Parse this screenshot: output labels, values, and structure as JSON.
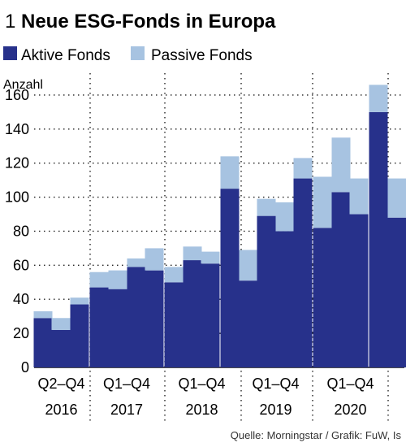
{
  "header": {
    "number": "1",
    "title": "Neue ESG-Fonds in Europa"
  },
  "source": "Quelle: Morningstar / Grafik: FuW, Is",
  "colors": {
    "active": "#27318b",
    "passive": "#a7c3e1"
  },
  "chart_data": {
    "type": "bar",
    "stacked": true,
    "title": "Neue ESG-Fonds in Europa",
    "ylabel": "Anzahl",
    "ylim": [
      0,
      170
    ],
    "yticks": [
      0,
      20,
      40,
      60,
      80,
      100,
      120,
      140,
      160
    ],
    "grid": true,
    "legend_position": "top",
    "series": [
      {
        "name": "Aktive Fonds",
        "values": [
          29,
          22,
          37,
          47,
          46,
          59,
          57,
          50,
          63,
          61,
          105,
          51,
          89,
          80,
          111,
          82,
          103,
          90,
          150,
          88
        ]
      },
      {
        "name": "Passive Fonds",
        "values": [
          4,
          7,
          4,
          9,
          11,
          5,
          13,
          9,
          8,
          7,
          19,
          18,
          10,
          17,
          12,
          30,
          32,
          21,
          16,
          23
        ]
      }
    ],
    "groups": [
      {
        "period": "Q2–Q4",
        "year": "2016",
        "count": 3
      },
      {
        "period": "Q1–Q4",
        "year": "2017",
        "count": 4
      },
      {
        "period": "Q1–Q4",
        "year": "2018",
        "count": 4
      },
      {
        "period": "Q1–Q4",
        "year": "2019",
        "count": 4
      },
      {
        "period": "Q1–Q4",
        "year": "2020",
        "count": 4
      },
      {
        "period": "",
        "year": "",
        "count": 1
      }
    ]
  }
}
